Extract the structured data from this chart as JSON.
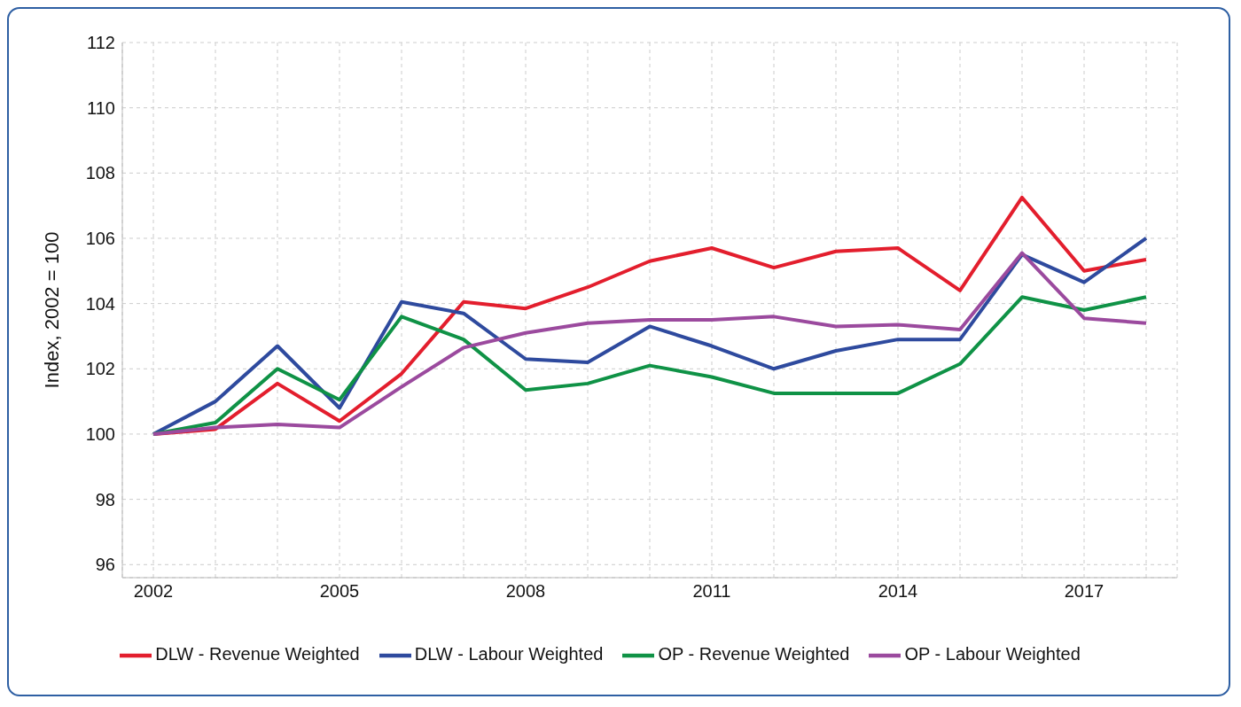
{
  "chart_data": {
    "type": "line",
    "ylabel": "Index, 2002 = 100",
    "x": [
      2002,
      2003,
      2004,
      2005,
      2006,
      2007,
      2008,
      2009,
      2010,
      2011,
      2012,
      2013,
      2014,
      2015,
      2016,
      2017,
      2018
    ],
    "series": [
      {
        "name": "DLW - Revenue Weighted",
        "color": "#e31e2d",
        "values": [
          100,
          100.15,
          101.55,
          100.4,
          101.85,
          104.05,
          103.85,
          104.5,
          105.3,
          105.7,
          105.1,
          105.6,
          105.7,
          104.4,
          107.25,
          105.0,
          105.35
        ]
      },
      {
        "name": "DLW - Labour Weighted",
        "color": "#2e4a9e",
        "values": [
          100,
          101.0,
          102.7,
          100.8,
          104.05,
          103.7,
          102.3,
          102.2,
          103.3,
          102.7,
          102.0,
          102.55,
          102.9,
          102.9,
          105.5,
          104.65,
          106.0
        ]
      },
      {
        "name": "OP - Revenue Weighted",
        "color": "#0f9246",
        "values": [
          100,
          100.35,
          102.0,
          101.05,
          103.6,
          102.9,
          101.35,
          101.55,
          102.1,
          101.75,
          101.25,
          101.25,
          101.25,
          102.15,
          104.2,
          103.8,
          104.2
        ]
      },
      {
        "name": "OP - Labour Weighted",
        "color": "#9b4a9e",
        "values": [
          100,
          100.2,
          100.3,
          100.2,
          101.45,
          102.65,
          103.1,
          103.4,
          103.5,
          103.5,
          103.6,
          103.3,
          103.35,
          103.2,
          105.55,
          103.55,
          103.4
        ]
      }
    ],
    "xlim": [
      2001.5,
      2018.5
    ],
    "xticks": [
      2002,
      {
        "value": 2003,
        "label": null
      },
      {
        "value": 2004,
        "label": null
      },
      2005,
      {
        "value": 2006,
        "label": null
      },
      {
        "value": 2007,
        "label": null
      },
      2008,
      {
        "value": 2009,
        "label": null
      },
      {
        "value": 2010,
        "label": null
      },
      2011,
      {
        "value": 2012,
        "label": null
      },
      {
        "value": 2013,
        "label": null
      },
      2014,
      {
        "value": 2015,
        "label": null
      },
      {
        "value": 2016,
        "label": null
      },
      2017,
      {
        "value": 2018,
        "label": null
      }
    ],
    "ylim": [
      95.6,
      112
    ],
    "yticks": [
      96,
      98,
      100,
      102,
      104,
      106,
      108,
      110,
      112
    ],
    "grid": true,
    "legend": "bottom",
    "marker": "none",
    "line_style": "solid"
  }
}
